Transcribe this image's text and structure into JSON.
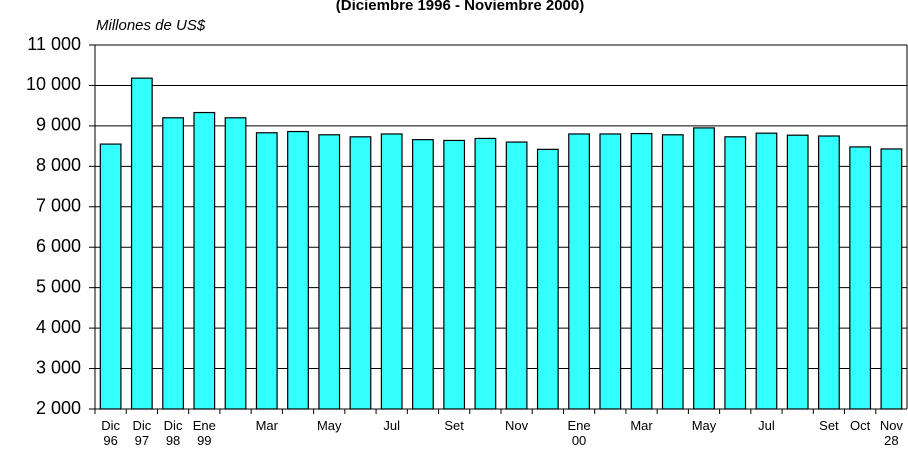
{
  "chart_data": {
    "type": "bar",
    "subtitle": "(Diciembre 1996 - Noviembre 2000)",
    "y_label": "Millones de US$",
    "categories": [
      "Dic 96",
      "Dic 97",
      "Dic 98",
      "Ene 99",
      null,
      "Mar",
      null,
      "May",
      null,
      "Jul",
      null,
      "Set",
      null,
      "Nov",
      null,
      "Ene 00",
      null,
      "Mar",
      null,
      "May",
      null,
      "Jul",
      null,
      "Set",
      "Oct",
      "Nov 28"
    ],
    "values": [
      8550,
      10180,
      9200,
      9330,
      9200,
      8830,
      8860,
      8780,
      8730,
      8800,
      8660,
      8640,
      8690,
      8600,
      8420,
      8800,
      8800,
      8810,
      8780,
      8950,
      8730,
      8820,
      8770,
      8750,
      8480,
      8430
    ],
    "color": "#33ffff",
    "ylim": [
      2000,
      11000
    ],
    "yticks": [
      {
        "value": 2000,
        "label": "2 000"
      },
      {
        "value": 3000,
        "label": "3 000"
      },
      {
        "value": 4000,
        "label": "4 000"
      },
      {
        "value": 5000,
        "label": "5 000"
      },
      {
        "value": 6000,
        "label": "6 000"
      },
      {
        "value": 7000,
        "label": "7 000"
      },
      {
        "value": 8000,
        "label": "8 000"
      },
      {
        "value": 9000,
        "label": "9 000"
      },
      {
        "value": 10000,
        "label": "10 000"
      },
      {
        "value": 11000,
        "label": "11 000"
      }
    ],
    "grid": true
  }
}
